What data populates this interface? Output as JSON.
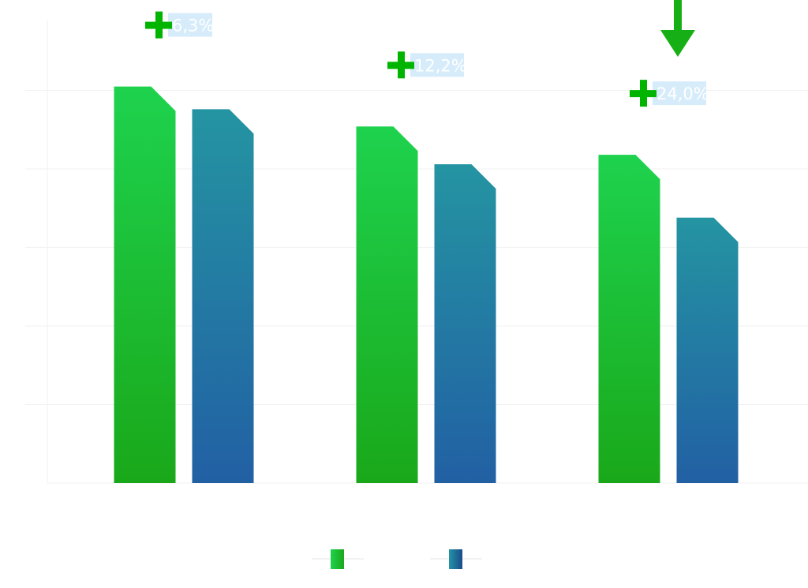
{
  "chart_data": {
    "type": "bar",
    "categories": [
      "",
      "",
      ""
    ],
    "series": [
      {
        "color": "#1fb81f",
        "values": [
          5.05,
          4.54,
          4.18
        ]
      },
      {
        "color": "#2366a8",
        "values": [
          4.76,
          4.06,
          3.38
        ]
      }
    ],
    "annotations": [
      "6,3%",
      "12,2%",
      "24,0%"
    ],
    "annotation_icon": "plus-icon",
    "highlight_icon": "arrow-down-icon",
    "highlight_category_index": 2,
    "ylim": [
      0,
      5.9
    ],
    "grid": true,
    "legend_position": "bottom-center",
    "colors": {
      "green_top": "#1ed24e",
      "green_bottom": "#1aa81a",
      "blue_top": "#2494a2",
      "blue_bottom": "#2260a4",
      "plus": "#00b400",
      "arrow": "#16b016",
      "badge_bg": "#d6ecfb",
      "grid": "#f2f2f2"
    }
  }
}
